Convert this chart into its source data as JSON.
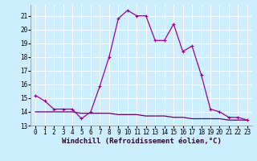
{
  "xlabel": "Windchill (Refroidissement éolien,°C)",
  "bg_color": "#cceeff",
  "grid_color": "#ffffff",
  "line_color": "#990099",
  "line2_color": "#660066",
  "x_line1": [
    0,
    1,
    2,
    3,
    4,
    5,
    6,
    7,
    8,
    9,
    10,
    11,
    12,
    13,
    14,
    15,
    16,
    17,
    18,
    19,
    20,
    21,
    22,
    23
  ],
  "y_line1": [
    15.2,
    14.8,
    14.2,
    14.2,
    14.2,
    13.5,
    14.0,
    15.9,
    18.0,
    20.8,
    21.4,
    21.0,
    21.0,
    19.2,
    19.2,
    20.4,
    18.4,
    18.8,
    16.7,
    14.2,
    14.0,
    13.6,
    13.6,
    13.4
  ],
  "x_line2": [
    0,
    1,
    2,
    3,
    4,
    5,
    6,
    7,
    8,
    9,
    10,
    11,
    12,
    13,
    14,
    15,
    16,
    17,
    18,
    19,
    20,
    21,
    22,
    23
  ],
  "y_line2": [
    14.0,
    14.0,
    14.0,
    14.0,
    14.0,
    13.9,
    13.9,
    13.9,
    13.9,
    13.8,
    13.8,
    13.8,
    13.7,
    13.7,
    13.7,
    13.6,
    13.6,
    13.5,
    13.5,
    13.5,
    13.5,
    13.4,
    13.4,
    13.4
  ],
  "xlim": [
    -0.5,
    23.5
  ],
  "ylim": [
    13,
    21.8
  ],
  "yticks": [
    13,
    14,
    15,
    16,
    17,
    18,
    19,
    20,
    21
  ],
  "xticks": [
    0,
    1,
    2,
    3,
    4,
    5,
    6,
    7,
    8,
    9,
    10,
    11,
    12,
    13,
    14,
    15,
    16,
    17,
    18,
    19,
    20,
    21,
    22,
    23
  ],
  "tick_fontsize": 5.5,
  "xlabel_fontsize": 6.5,
  "marker_size": 3,
  "linewidth": 0.9
}
